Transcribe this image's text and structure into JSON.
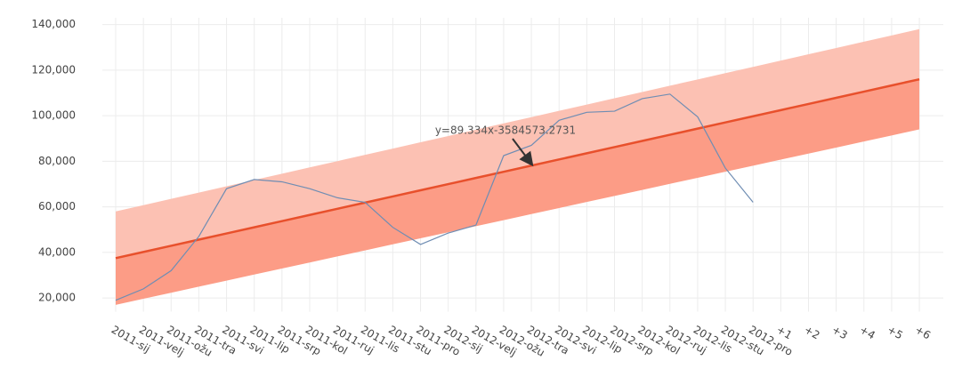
{
  "chart_data": {
    "type": "line",
    "categories": [
      "2011-sij",
      "2011-velj",
      "2011-ožu",
      "2011-tra",
      "2011-svi",
      "2011-lip",
      "2011-srp",
      "2011-kol",
      "2011-ruj",
      "2011-lis",
      "2011-stu",
      "2011-pro",
      "2012-sij",
      "2012-velj",
      "2012-ožu",
      "2012-tra",
      "2012-svi",
      "2012-lip",
      "2012-srp",
      "2012-kol",
      "2012-ruj",
      "2012-lis",
      "2012-stu",
      "2012-pro",
      "+1",
      "+2",
      "+3",
      "+4",
      "+5",
      "+6"
    ],
    "series": [
      {
        "color": "#6f8db3",
        "values": [
          19000,
          24000,
          32000,
          47000,
          68000,
          72000,
          71000,
          68000,
          64000,
          62000,
          51000,
          43500,
          48500,
          52000,
          82500,
          87000,
          98000,
          101500,
          102000,
          107500,
          109500,
          99500,
          77000,
          62000,
          null,
          null,
          null,
          null,
          null,
          null
        ]
      },
      {
        "color": "#e8502c",
        "values": [
          37500,
          40207,
          42914,
          45621,
          48328,
          51035,
          53742,
          56449,
          59156,
          61863,
          64570,
          67277,
          69984,
          72691,
          75398,
          78105,
          80812,
          83519,
          86226,
          88933,
          91640,
          94347,
          97054,
          99761,
          102468,
          105175,
          107882,
          110589,
          113296,
          116003
        ]
      },
      {
        "color": "#fcc1b3",
        "values": [
          58000,
          60759,
          63518,
          66277,
          69036,
          71795,
          74554,
          77313,
          80072,
          82831,
          85590,
          88349,
          91108,
          93867,
          96626,
          99385,
          102144,
          104903,
          107662,
          110421,
          113180,
          115939,
          118698,
          121457,
          124216,
          126975,
          129734,
          132493,
          135252,
          138011
        ]
      },
      {
        "color": "#fc9c86",
        "values": [
          17000,
          19655,
          22310,
          24965,
          27620,
          30275,
          32930,
          35585,
          38240,
          40895,
          43550,
          46205,
          48860,
          51515,
          54170,
          56825,
          59480,
          62135,
          64790,
          67445,
          70100,
          72755,
          75410,
          78065,
          80720,
          83375,
          86030,
          88685,
          91340,
          93995
        ]
      }
    ],
    "annotation": "y=89.334x-3584573.2731",
    "ylim": [
      14000,
      143000
    ],
    "yticks": [
      {
        "value": 20000,
        "label": "20,000"
      },
      {
        "value": 40000,
        "label": "40,000"
      },
      {
        "value": 60000,
        "label": "60,000"
      },
      {
        "value": 80000,
        "label": "80,000"
      },
      {
        "value": 100000,
        "label": "100,000"
      },
      {
        "value": 120000,
        "label": "120,000"
      },
      {
        "value": 140000,
        "label": "140,000"
      }
    ],
    "grid": true
  }
}
